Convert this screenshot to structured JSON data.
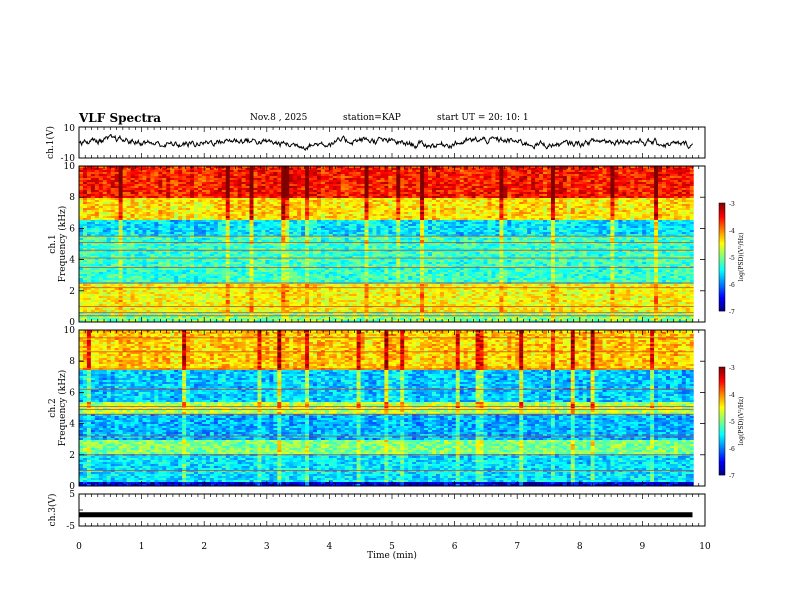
{
  "header": {
    "title": "VLF Spectra",
    "date": "Nov.8 , 2025",
    "station": "station=KAP",
    "start": "start UT = 20: 10: 1"
  },
  "chart_data": [
    {
      "type": "line",
      "panel": "ch1",
      "ylabel": "ch.1(V)",
      "ylim": [
        -10,
        10
      ],
      "yticks": [
        "10",
        "-10"
      ],
      "description_values": "noisy waveform oscillating roughly between -4 and 4 V across 0-9.8 min",
      "x_range": [
        0,
        9.8
      ]
    },
    {
      "type": "heatmap",
      "panel": "ch1-spectrogram",
      "ylabel_line1": "ch.1",
      "ylabel_line2": "Frequency (kHz)",
      "ylim": [
        0,
        10
      ],
      "yticks": [
        "0",
        "2",
        "4",
        "6",
        "8",
        "10"
      ],
      "colorbar": {
        "label": "log(PSD)(V²/Hz)",
        "range": [
          -7,
          -3
        ],
        "ticks": [
          "-3",
          "-4",
          "-5",
          "-6",
          "-7"
        ]
      },
      "bands": [
        {
          "from": 0,
          "to": 0.6,
          "level": -5.0
        },
        {
          "from": 0.6,
          "to": 2.5,
          "level": -4.5
        },
        {
          "from": 2.5,
          "to": 5.5,
          "level": -5.3
        },
        {
          "from": 5.5,
          "to": 6.5,
          "level": -5.6
        },
        {
          "from": 6.5,
          "to": 8.0,
          "level": -4.4
        },
        {
          "from": 8.0,
          "to": 10,
          "level": -3.6
        }
      ],
      "lines_kHz": [
        0.4,
        0.6,
        1.0,
        2.2,
        2.5,
        3.5,
        4.1,
        4.6,
        5.1,
        5.5
      ]
    },
    {
      "type": "heatmap",
      "panel": "ch2-spectrogram",
      "ylabel_line1": "ch.2",
      "ylabel_line2": "Frequency (kHz)",
      "ylim": [
        0,
        10
      ],
      "yticks": [
        "0",
        "2",
        "4",
        "6",
        "8",
        "10"
      ],
      "colorbar": {
        "label": "log(PSD)(V²/Hz)",
        "range": [
          -7,
          -3
        ],
        "ticks": [
          "-3",
          "-4",
          "-5",
          "-6",
          "-7"
        ]
      },
      "bands": [
        {
          "from": 0,
          "to": 0.3,
          "level": -6.6
        },
        {
          "from": 0.3,
          "to": 2.0,
          "level": -5.6
        },
        {
          "from": 2.0,
          "to": 3.0,
          "level": -5.0
        },
        {
          "from": 3.0,
          "to": 4.6,
          "level": -5.8
        },
        {
          "from": 4.6,
          "to": 5.4,
          "level": -4.8
        },
        {
          "from": 5.4,
          "to": 7.5,
          "level": -5.7
        },
        {
          "from": 7.5,
          "to": 10,
          "level": -4.3
        }
      ],
      "lines_kHz": [
        1.0,
        2.0,
        3.2,
        4.6,
        4.9,
        5.1,
        6.2,
        7.5,
        8.6,
        9.5
      ]
    },
    {
      "type": "line",
      "panel": "ch3",
      "ylabel": "ch.3(V)",
      "ylim": [
        -5,
        5
      ],
      "yticks": [
        "5",
        "0",
        "-5"
      ],
      "constant_value": -1.5,
      "x_range": [
        0,
        9.8
      ]
    }
  ],
  "xaxis": {
    "label": "Time (min)",
    "xlim": [
      0,
      10
    ],
    "ticks": [
      "0",
      "1",
      "2",
      "3",
      "4",
      "5",
      "6",
      "7",
      "8",
      "9",
      "10"
    ]
  }
}
